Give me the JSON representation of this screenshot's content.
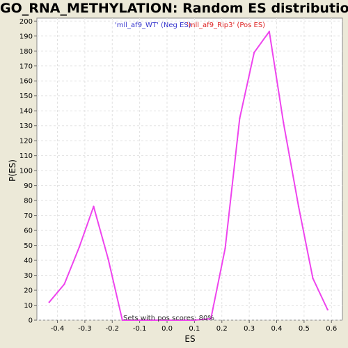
{
  "chart_data": {
    "type": "line",
    "title": "GO_RNA_METHYLATION: Random ES distribution",
    "xlabel": "ES",
    "ylabel": "P(ES)",
    "xlim": [
      -0.475,
      0.64
    ],
    "ylim": [
      0,
      202
    ],
    "x_ticks": [
      -0.4,
      -0.3,
      -0.2,
      -0.1,
      0.0,
      0.1,
      0.2,
      0.3,
      0.4,
      0.5,
      0.6
    ],
    "x_tick_labels": [
      "-0.4",
      "-0.3",
      "-0.2",
      "-0.1",
      "0.0",
      "0.1",
      "0.2",
      "0.3",
      "0.4",
      "0.5",
      "0.6"
    ],
    "y_ticks": [
      0,
      10,
      20,
      30,
      40,
      50,
      60,
      70,
      80,
      90,
      100,
      110,
      120,
      130,
      140,
      150,
      160,
      170,
      180,
      190,
      200
    ],
    "grid": true,
    "legend": [
      {
        "label": "'mll_af9_WT' (Neg ES)",
        "color": "#3333cc"
      },
      {
        "label": "'mll_af9_Rip3' (Pos ES)",
        "color": "#dd2222"
      }
    ],
    "annotation": "Sets with pos scores: 80%",
    "series": [
      {
        "color": "#ee44ee",
        "x": [
          -0.43,
          -0.375,
          -0.32,
          -0.268,
          -0.215,
          -0.163,
          -0.11,
          -0.058,
          -0.005,
          0.048,
          0.1,
          0.16,
          0.212,
          0.265,
          0.318,
          0.373,
          0.425,
          0.48,
          0.532,
          0.586
        ],
        "y": [
          12,
          24,
          49,
          76,
          41,
          0,
          0,
          0,
          0,
          0,
          0,
          1,
          48,
          135,
          179,
          193,
          132,
          76,
          28,
          7
        ]
      }
    ]
  }
}
